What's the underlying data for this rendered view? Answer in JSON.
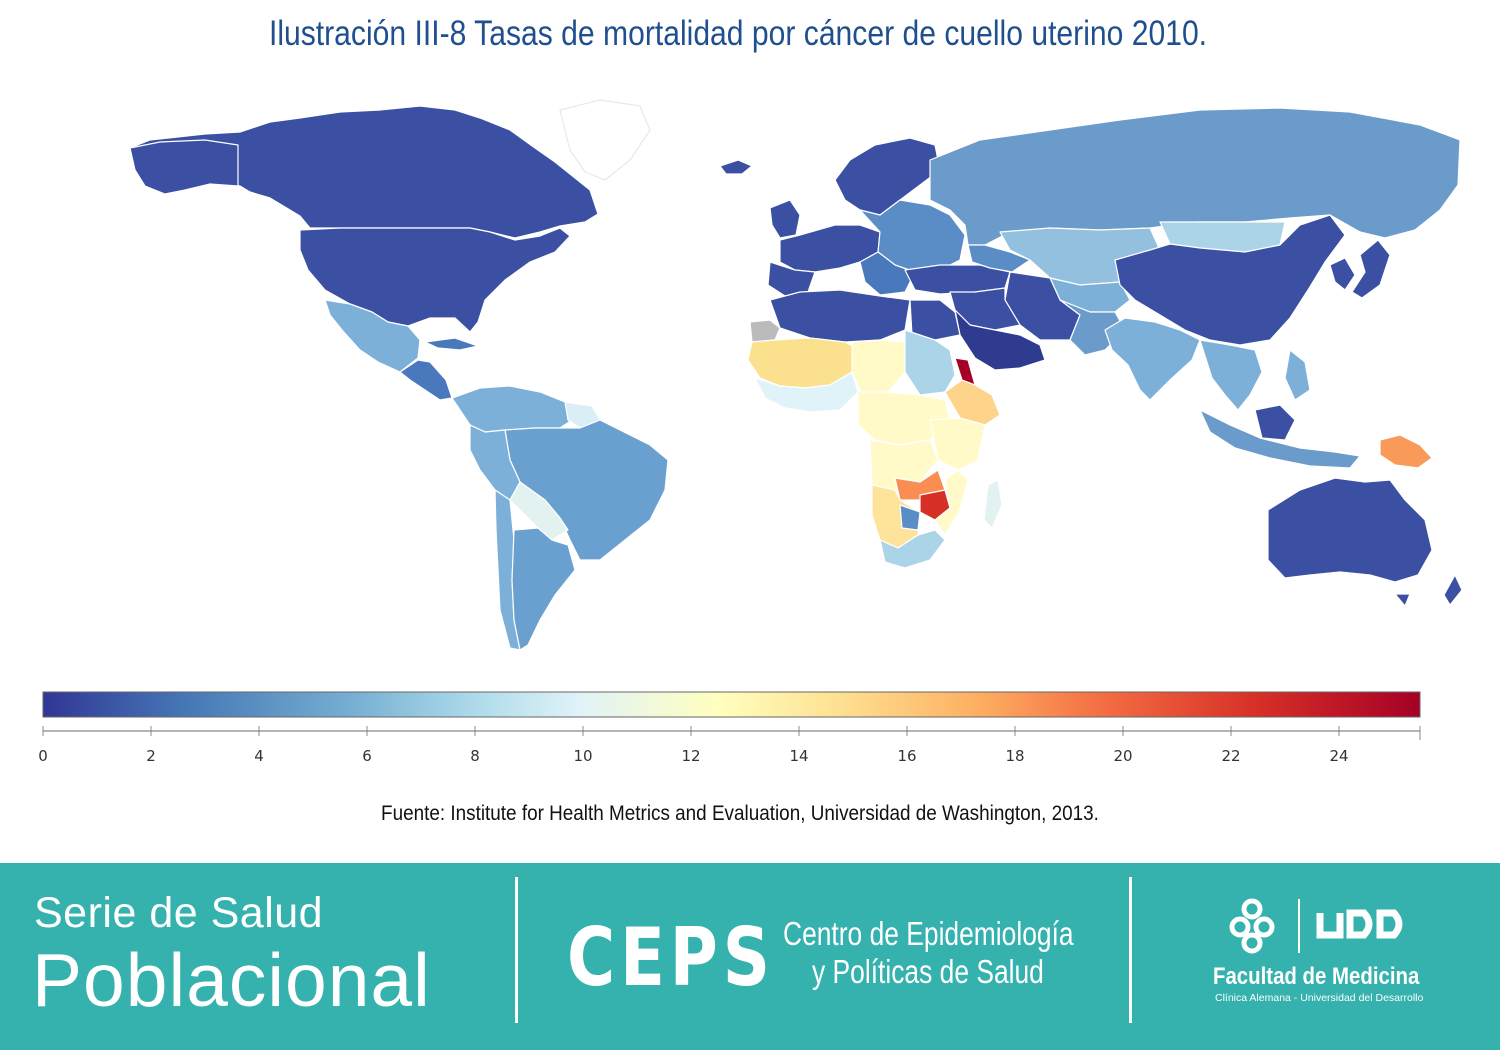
{
  "title": "Ilustración III-8 Tasas de mortalidad por cáncer de cuello uterino 2010.",
  "source": "Fuente: Institute for Health Metrics and Evaluation, Universidad de Washington, 2013.",
  "colors": {
    "title": "#1f4f8f",
    "footer_bg": "#35b1ae",
    "scale": [
      "#313695",
      "#4575b4",
      "#74add1",
      "#abd9e9",
      "#e0f3f8",
      "#ffffbf",
      "#fee090",
      "#fdae61",
      "#f46d43",
      "#d73027",
      "#a50026"
    ]
  },
  "legend": {
    "min": 0,
    "max": 25.5,
    "ticks": [
      "0",
      "2",
      "4",
      "6",
      "8",
      "10",
      "12",
      "14",
      "16",
      "18",
      "20",
      "22",
      "24"
    ]
  },
  "footer": {
    "series_line1": "Serie de Salud",
    "series_line2": "Poblacional",
    "ceps_mark": "CEPS",
    "ceps_name_line1": "Centro de Epidemiología",
    "ceps_name_line2": "y Políticas de Salud",
    "udd_logo": "UDD",
    "faculty_name": "Facultad de Medicina",
    "faculty_sub": "Clínica Alemana - Universidad del Desarrollo"
  },
  "icons": [
    "globe-map",
    "udd-cross-icon"
  ]
}
